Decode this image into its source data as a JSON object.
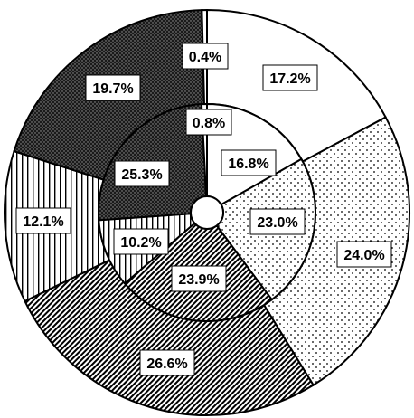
{
  "chart_data": {
    "type": "pie",
    "subtype": "nested-donut",
    "segment_order": [
      "white",
      "dots",
      "diagonal-hatch",
      "vertical-stripes",
      "dense-crosshatch",
      "thin-white"
    ],
    "series": [
      {
        "ring": "outer",
        "values": [
          17.2,
          24.0,
          26.6,
          12.1,
          19.7,
          0.4
        ],
        "labels": [
          "17.2%",
          "24.0%",
          "26.6%",
          "12.1%",
          "19.7%",
          "0.4%"
        ]
      },
      {
        "ring": "inner",
        "values": [
          16.8,
          23.0,
          23.9,
          10.2,
          25.3,
          0.8
        ],
        "labels": [
          "16.8%",
          "23.0%",
          "23.9%",
          "10.2%",
          "25.3%",
          "0.8%"
        ]
      }
    ],
    "patterns": {
      "white": "#ffffff",
      "dots": "#000000",
      "diagonal-hatch": "#000000",
      "vertical-stripes": "#000000",
      "dense-crosshatch": "#000000",
      "thin-white": "#ffffff"
    }
  }
}
